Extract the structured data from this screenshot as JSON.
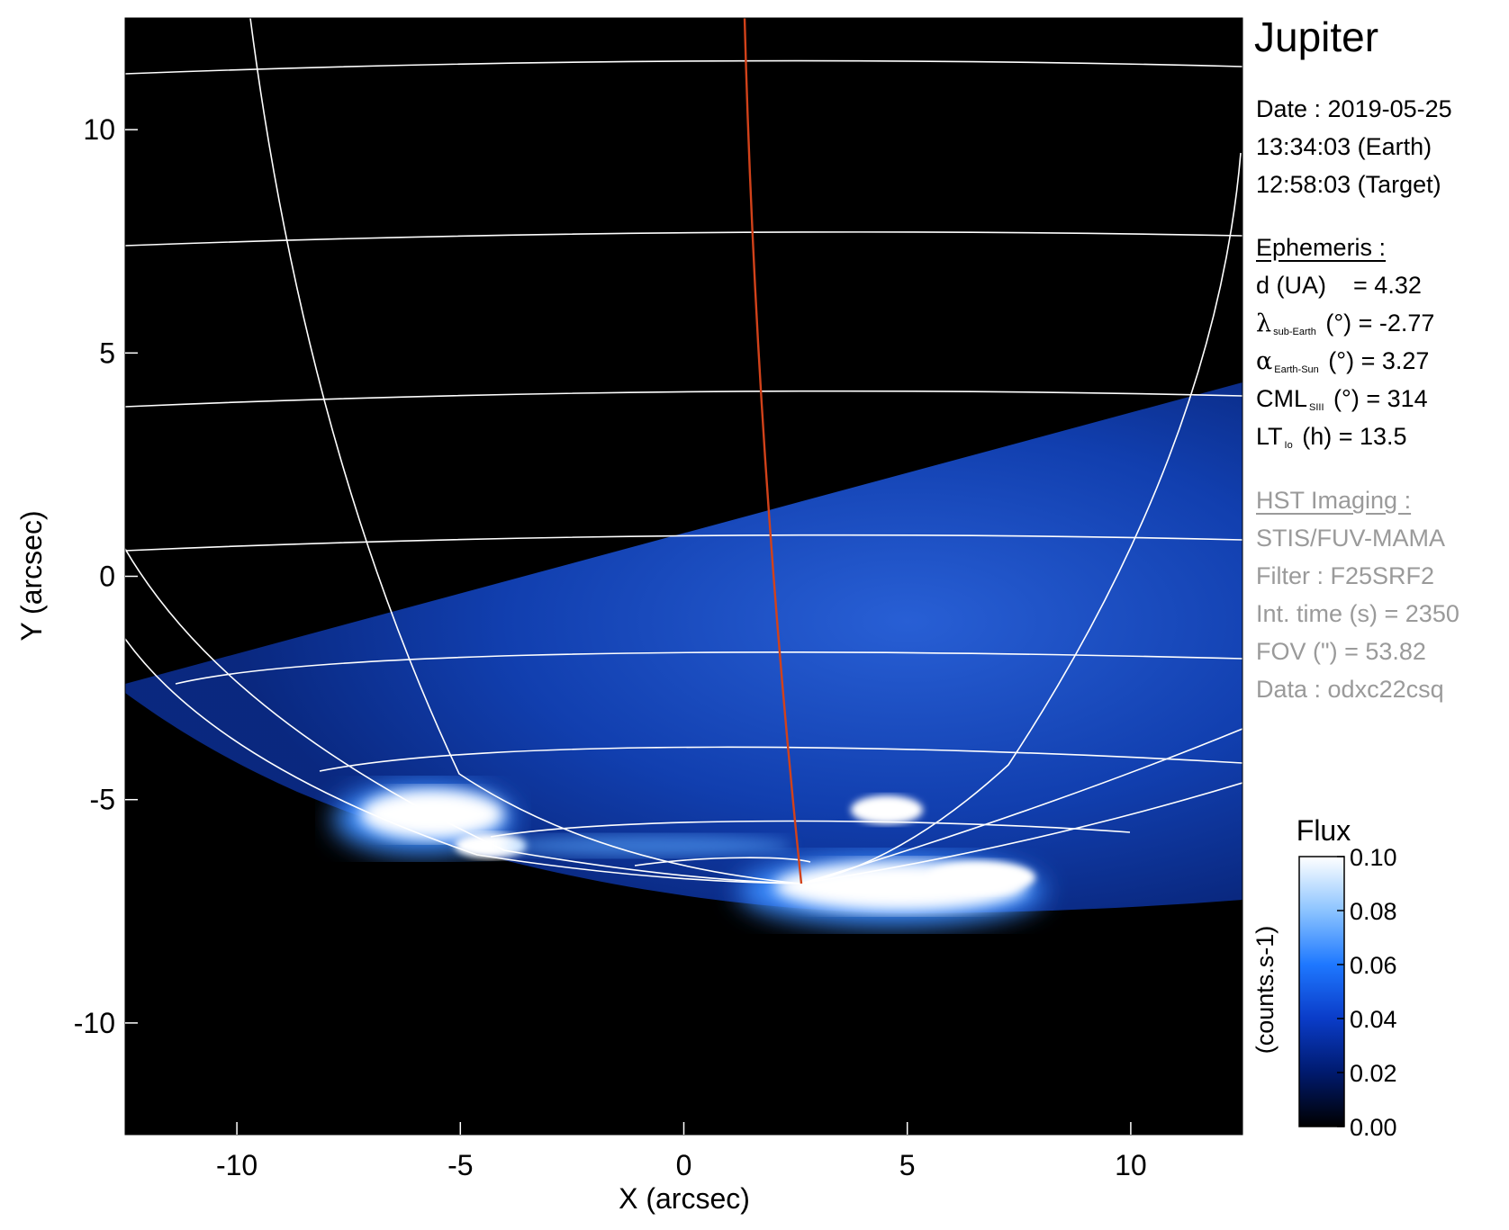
{
  "title": "Jupiter",
  "date": {
    "date_line": "Date : 2019-05-25",
    "earth_time": "13:34:03 (Earth)",
    "target_time": "12:58:03 (Target)"
  },
  "ephemeris": {
    "header": "Ephemeris :",
    "d": {
      "label": "d (UA)",
      "value": "= 4.32"
    },
    "lambda": {
      "symbol": "λ",
      "sub": "sub-Earth",
      "unit": "(°)",
      "value": "= -2.77"
    },
    "alpha": {
      "symbol": "α",
      "sub": "Earth-Sun",
      "unit": "(°)",
      "value": "= 3.27"
    },
    "cml": {
      "symbol": "CML",
      "sub": "SIII",
      "unit": "(°)",
      "value": "= 314"
    },
    "lt": {
      "symbol": "LT",
      "sub": "Io",
      "unit": "(h)",
      "value": "= 13.5"
    }
  },
  "hst": {
    "header": "HST Imaging :",
    "instrument": "STIS/FUV-MAMA",
    "filter": "Filter : F25SRF2",
    "int_time": "Int. time (s) = 2350",
    "fov": "FOV (\") = 53.82",
    "data": "Data : odxc22csq"
  },
  "colors": {
    "background": "#000000",
    "disk": "#0f3aa8",
    "grid": "#ffffff",
    "meridian": "#d2421a",
    "text_gray": "#9a9a9a"
  },
  "chart_data": {
    "type": "heatmap",
    "xlabel": "X (arcsec)",
    "ylabel": "Y (arcsec)",
    "xlim": [
      -12.5,
      12.5
    ],
    "ylim": [
      -12.5,
      12.5
    ],
    "xticks": [
      -10,
      -5,
      0,
      5,
      10
    ],
    "yticks": [
      -10,
      -5,
      0,
      5,
      10
    ],
    "colorbar": {
      "title": "Flux",
      "label": "(counts.s-1)",
      "range": [
        0.0,
        0.1
      ],
      "ticks": [
        "0.00",
        "0.02",
        "0.04",
        "0.06",
        "0.08",
        "0.10"
      ],
      "colors": [
        "#000000",
        "#001a6e",
        "#0a3cc8",
        "#1e78ff",
        "#8cc4ff",
        "#ffffff"
      ]
    }
  }
}
